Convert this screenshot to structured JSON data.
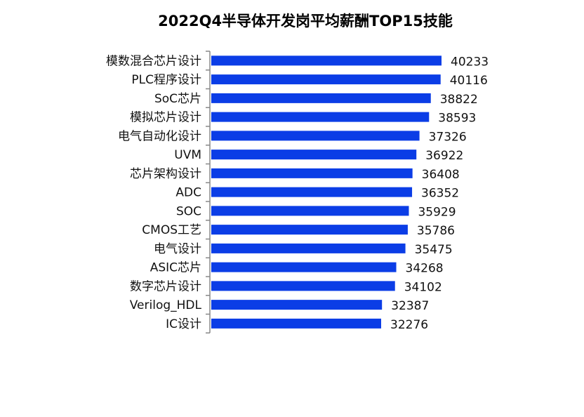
{
  "chart_data": {
    "type": "bar",
    "orientation": "horizontal",
    "title": "2022Q4半导体开发岗平均薪酬TOP15技能",
    "categories": [
      "模数混合芯片设计",
      "PLC程序设计",
      "SoC芯片",
      "模拟芯片设计",
      "电气自动化设计",
      "UVM",
      "芯片架构设计",
      "ADC",
      "SOC",
      "CMOS工艺",
      "电气设计",
      "ASIC芯片",
      "数字芯片设计",
      "Verilog_HDL",
      "IC设计"
    ],
    "values": [
      40233,
      40116,
      38822,
      38593,
      37326,
      36922,
      36408,
      36352,
      35929,
      35786,
      35475,
      34268,
      34102,
      32387,
      32276
    ],
    "xlabel": "",
    "ylabel": "",
    "xlim_min": 9885,
    "grid": false,
    "data_labels": true,
    "bar_color": "#0b3de6"
  }
}
